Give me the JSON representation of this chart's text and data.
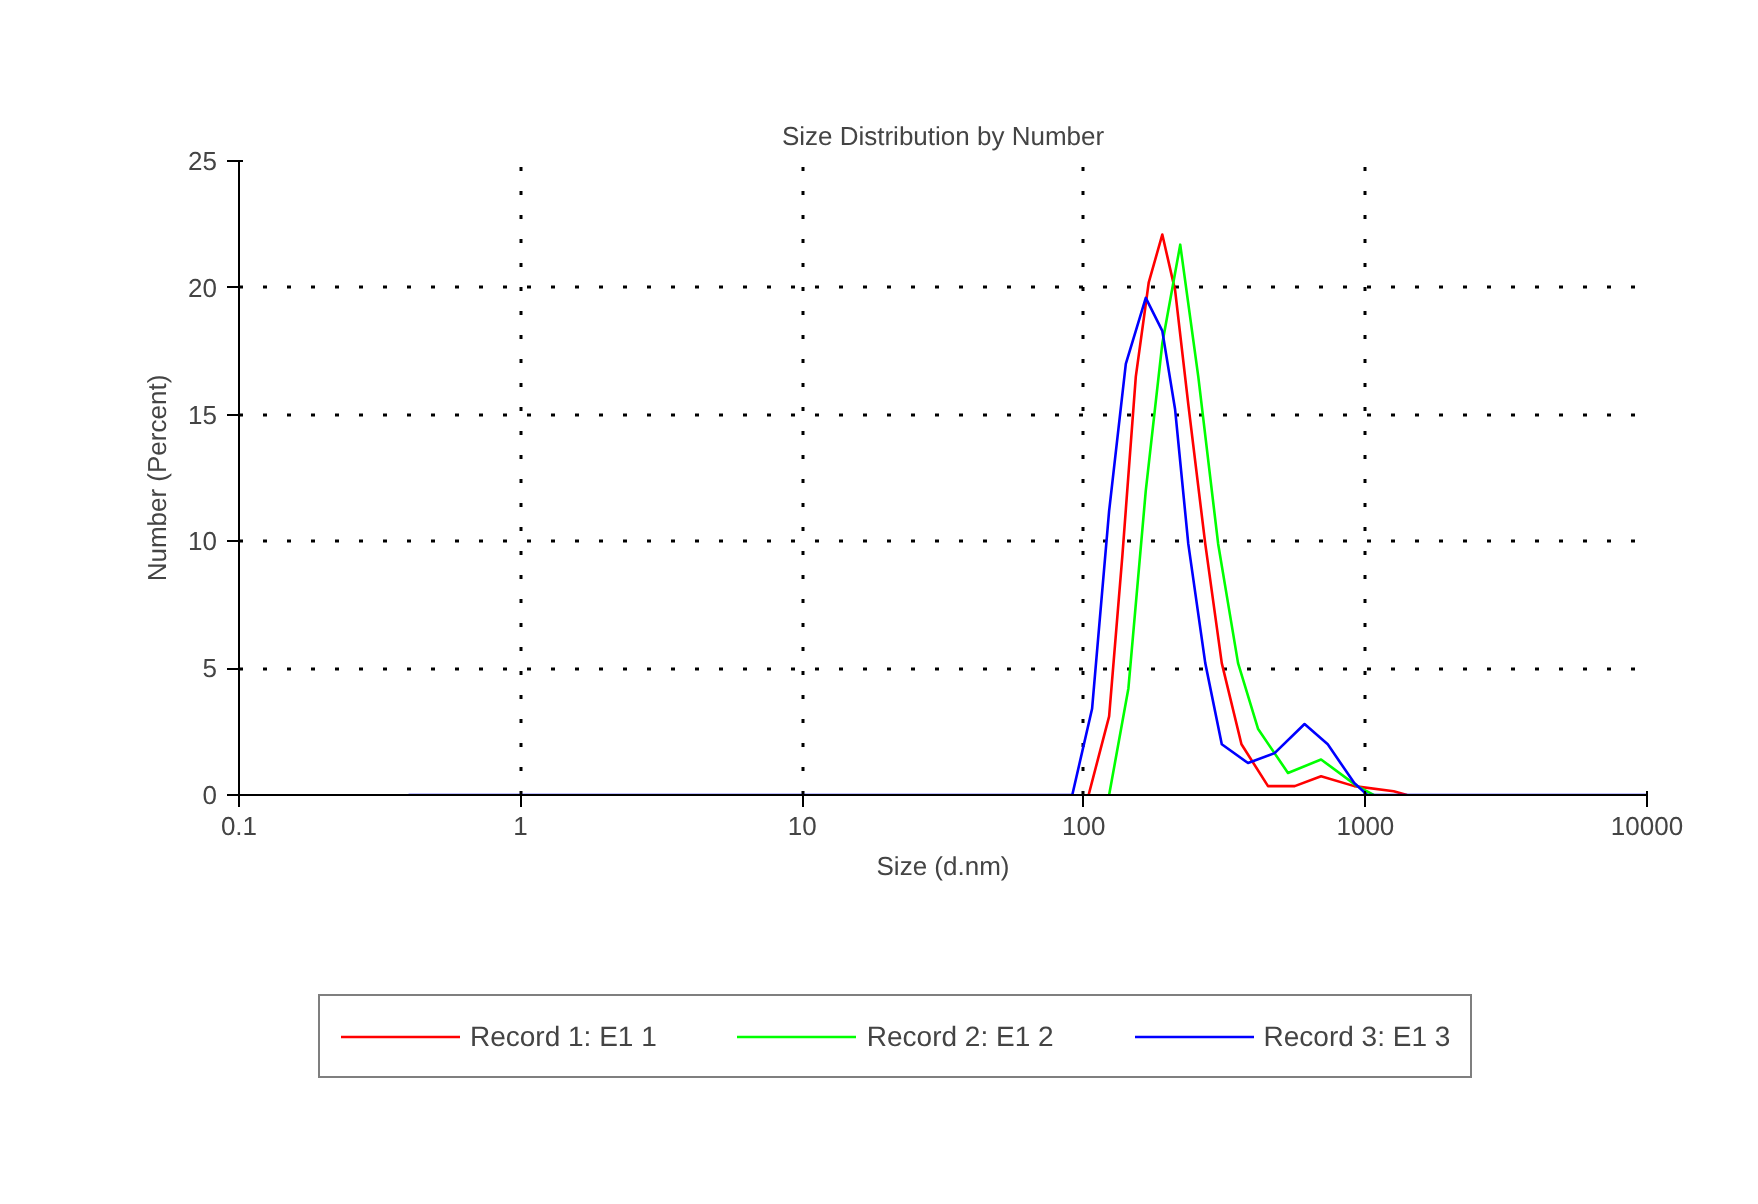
{
  "chart_data": {
    "type": "line",
    "title": "Size Distribution by Number",
    "xlabel": "Size (d.nm)",
    "ylabel": "Number (Percent)",
    "log": "x",
    "xlim": [
      0.1,
      10000
    ],
    "xticks": [
      0.1,
      1,
      10,
      100,
      1000,
      10000
    ],
    "ylim": [
      0,
      25
    ],
    "yticks": [
      0,
      5,
      10,
      15,
      20,
      25
    ],
    "grid": true,
    "legend": "bottom",
    "line_style": "solid",
    "marker": "none",
    "series": [
      {
        "name": "Record 1: E1 1",
        "color": "#ff0000",
        "x": [
          104,
          123,
          137,
          153,
          170,
          190,
          211,
          235,
          270,
          309,
          363,
          451,
          561,
          696,
          913,
          1260,
          1405
        ],
        "values": [
          0,
          3.1,
          9.4,
          16.5,
          20.2,
          22.1,
          19.9,
          15.4,
          9.9,
          5.2,
          2.0,
          0.35,
          0.35,
          0.74,
          0.35,
          0.15,
          0
        ]
      },
      {
        "name": "Record 2: E1 2",
        "color": "#00ff00",
        "x": [
          123,
          144,
          166,
          190,
          220,
          255,
          300,
          353,
          416,
          531,
          696,
          935,
          1070
        ],
        "values": [
          0,
          4.2,
          12.0,
          17.8,
          21.7,
          16.5,
          9.9,
          5.2,
          2.6,
          0.87,
          1.4,
          0.35,
          0
        ]
      },
      {
        "name": "Record 3: E1 3",
        "color": "#0000ff",
        "x": [
          0.4,
          91,
          107,
          123,
          141,
          166,
          190,
          211,
          235,
          270,
          309,
          383,
          476,
          608,
          735,
          913,
          1016,
          10000
        ],
        "values": [
          0,
          0,
          3.4,
          11.2,
          17.0,
          19.6,
          18.3,
          15.2,
          9.9,
          5.2,
          2.0,
          1.26,
          1.65,
          2.8,
          2.0,
          0.47,
          0,
          0
        ]
      }
    ]
  }
}
